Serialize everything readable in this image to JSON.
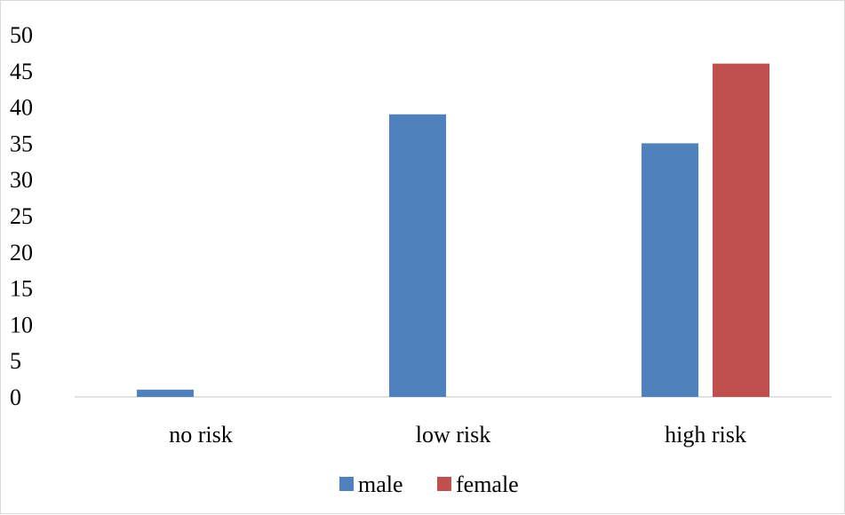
{
  "chart_data": {
    "type": "bar",
    "title": "",
    "xlabel": "",
    "ylabel": "",
    "categories": [
      "no risk",
      "low risk",
      "high risk"
    ],
    "series": [
      {
        "name": "male",
        "values": [
          1,
          39,
          35
        ],
        "color": "#4f81bd"
      },
      {
        "name": "female",
        "values": [
          0,
          0,
          46
        ],
        "color": "#c0504d"
      }
    ],
    "ylim": [
      0,
      50
    ],
    "yticks": [
      0,
      5,
      10,
      15,
      20,
      25,
      30,
      35,
      40,
      45,
      50
    ],
    "grid": false,
    "legend_position": "bottom"
  }
}
